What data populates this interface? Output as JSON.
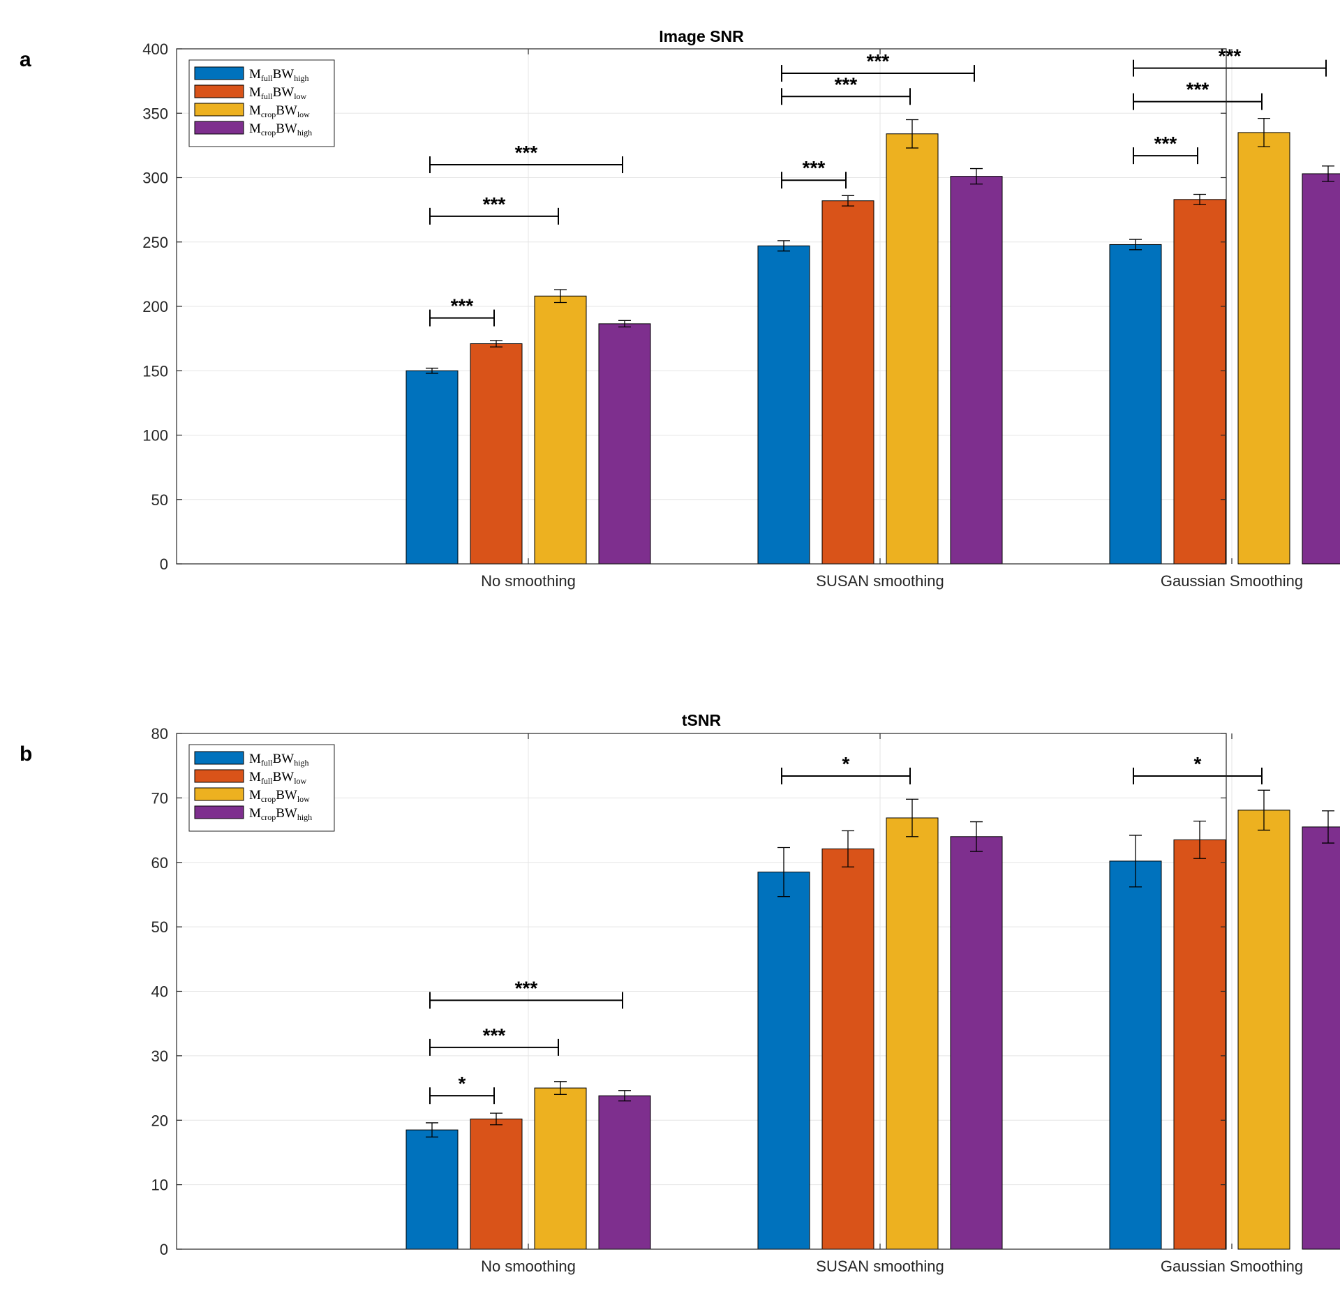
{
  "colors": {
    "series": [
      "#0072BD",
      "#D95319",
      "#EDB120",
      "#7E2F8E"
    ],
    "grid": "#e5e5e5",
    "axis": "#262626",
    "bar_edge": "#000000"
  },
  "chart_data": [
    {
      "type": "bar",
      "panel_label": "a",
      "title": "Image SNR",
      "xlabel": "",
      "ylabel": "",
      "ylim": [
        0,
        400
      ],
      "yticks": [
        0,
        50,
        100,
        150,
        200,
        250,
        300,
        350,
        400
      ],
      "grid": true,
      "legend_position": "top-left",
      "categories": [
        "No smoothing",
        "SUSAN smoothing",
        "Gaussian Smoothing"
      ],
      "series": [
        {
          "name": "MfullBWhigh",
          "base": "M",
          "sub1": "full",
          "mid": "BW",
          "sub2": "high",
          "values": [
            150,
            247,
            248
          ],
          "errors": [
            2,
            4,
            4
          ]
        },
        {
          "name": "MfullBWlow",
          "base": "M",
          "sub1": "full",
          "mid": "BW",
          "sub2": "low",
          "values": [
            171,
            282,
            283
          ],
          "errors": [
            2.5,
            4,
            4
          ]
        },
        {
          "name": "McropBWlow",
          "base": "M",
          "sub1": "crop",
          "mid": "BW",
          "sub2": "low",
          "values": [
            208,
            334,
            335
          ],
          "errors": [
            5,
            11,
            11
          ]
        },
        {
          "name": "McropBWhigh",
          "base": "M",
          "sub1": "crop",
          "mid": "BW",
          "sub2": "high",
          "values": [
            186.5,
            301,
            303
          ],
          "errors": [
            2.5,
            6,
            6
          ]
        }
      ],
      "significance": [
        {
          "category": 0,
          "from": 0,
          "to": 1,
          "y": 191,
          "label": "***"
        },
        {
          "category": 0,
          "from": 0,
          "to": 2,
          "y": 270,
          "label": "***"
        },
        {
          "category": 0,
          "from": 0,
          "to": 3,
          "y": 310,
          "label": "***"
        },
        {
          "category": 1,
          "from": 0,
          "to": 1,
          "y": 298,
          "label": "***"
        },
        {
          "category": 1,
          "from": 0,
          "to": 2,
          "y": 363,
          "label": "***"
        },
        {
          "category": 1,
          "from": 0,
          "to": 3,
          "y": 381,
          "label": "***"
        },
        {
          "category": 2,
          "from": 0,
          "to": 1,
          "y": 317,
          "label": "***"
        },
        {
          "category": 2,
          "from": 0,
          "to": 2,
          "y": 359,
          "label": "***"
        },
        {
          "category": 2,
          "from": 0,
          "to": 3,
          "y": 385,
          "label": "***"
        }
      ]
    },
    {
      "type": "bar",
      "panel_label": "b",
      "title": "tSNR",
      "xlabel": "",
      "ylabel": "",
      "ylim": [
        0,
        80
      ],
      "yticks": [
        0,
        10,
        20,
        30,
        40,
        50,
        60,
        70,
        80
      ],
      "grid": true,
      "legend_position": "top-left",
      "categories": [
        "No smoothing",
        "SUSAN smoothing",
        "Gaussian Smoothing"
      ],
      "series": [
        {
          "name": "MfullBWhigh",
          "base": "M",
          "sub1": "full",
          "mid": "BW",
          "sub2": "high",
          "values": [
            18.5,
            58.5,
            60.2
          ],
          "errors": [
            1.1,
            3.8,
            4
          ]
        },
        {
          "name": "MfullBWlow",
          "base": "M",
          "sub1": "full",
          "mid": "BW",
          "sub2": "low",
          "values": [
            20.2,
            62.1,
            63.5
          ],
          "errors": [
            0.9,
            2.8,
            2.9
          ]
        },
        {
          "name": "McropBWlow",
          "base": "M",
          "sub1": "crop",
          "mid": "BW",
          "sub2": "low",
          "values": [
            25,
            66.9,
            68.1
          ],
          "errors": [
            1,
            2.9,
            3.1
          ]
        },
        {
          "name": "McropBWhigh",
          "base": "M",
          "sub1": "crop",
          "mid": "BW",
          "sub2": "high",
          "values": [
            23.8,
            64,
            65.5
          ],
          "errors": [
            0.8,
            2.3,
            2.5
          ]
        }
      ],
      "significance": [
        {
          "category": 0,
          "from": 0,
          "to": 1,
          "y": 23.8,
          "label": "*"
        },
        {
          "category": 0,
          "from": 0,
          "to": 2,
          "y": 31.3,
          "label": "***"
        },
        {
          "category": 0,
          "from": 0,
          "to": 3,
          "y": 38.6,
          "label": "***"
        },
        {
          "category": 1,
          "from": 0,
          "to": 2,
          "y": 73.4,
          "label": "*"
        },
        {
          "category": 2,
          "from": 0,
          "to": 2,
          "y": 73.4,
          "label": "*"
        }
      ]
    }
  ]
}
